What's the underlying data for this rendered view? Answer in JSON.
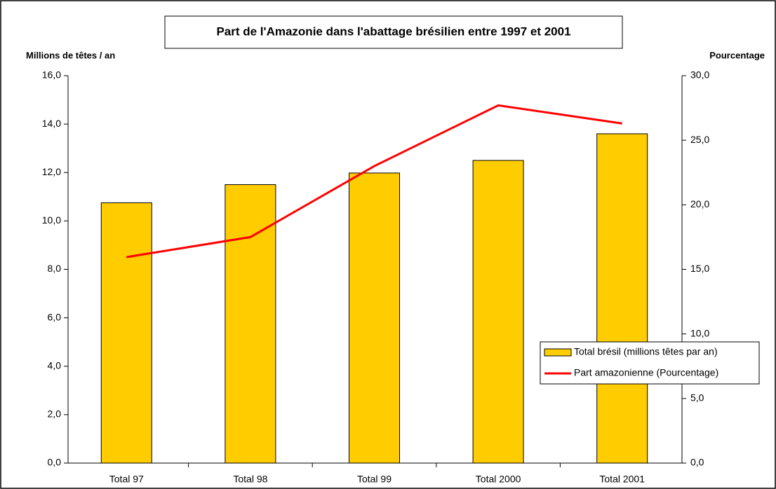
{
  "chart_data": {
    "type": "bar-line",
    "title": "Part de l'Amazonie dans l'abattage brésilien entre 1997 et 2001",
    "ylabel": "Millions de têtes / an",
    "y2label": "Pourcentage",
    "categories": [
      "Total 97",
      "Total 98",
      "Total 99",
      "Total 2000",
      "Total 2001"
    ],
    "series": [
      {
        "name": "Total brésil (millions têtes par an)",
        "type": "bar",
        "color": "#ffcc00",
        "values": [
          10.75,
          11.5,
          11.98,
          12.5,
          13.6
        ]
      },
      {
        "name": "Part amazonienne (Pourcentage)",
        "type": "line",
        "axis": "y2",
        "color": "#ff0000",
        "values": [
          15.95,
          17.5,
          23.0,
          27.7,
          26.3
        ]
      }
    ],
    "ylim": [
      0,
      16
    ],
    "yticks": [
      {
        "value": 0,
        "label": "0,0"
      },
      {
        "value": 2,
        "label": "2,0"
      },
      {
        "value": 4,
        "label": "4,0"
      },
      {
        "value": 6,
        "label": "6,0"
      },
      {
        "value": 8,
        "label": "8,0"
      },
      {
        "value": 10,
        "label": "10,0"
      },
      {
        "value": 12,
        "label": "12,0"
      },
      {
        "value": 14,
        "label": "14,0"
      },
      {
        "value": 16,
        "label": "16,0"
      }
    ],
    "y2lim": [
      0,
      30
    ],
    "y2ticks": [
      {
        "value": 0,
        "label": "0,0"
      },
      {
        "value": 5,
        "label": "5,0"
      },
      {
        "value": 10,
        "label": "10,0"
      },
      {
        "value": 15,
        "label": "15,0"
      },
      {
        "value": 20,
        "label": "20,0"
      },
      {
        "value": 25,
        "label": "25,0"
      },
      {
        "value": 30,
        "label": "30,0"
      }
    ],
    "legend": "right",
    "grid": false
  }
}
